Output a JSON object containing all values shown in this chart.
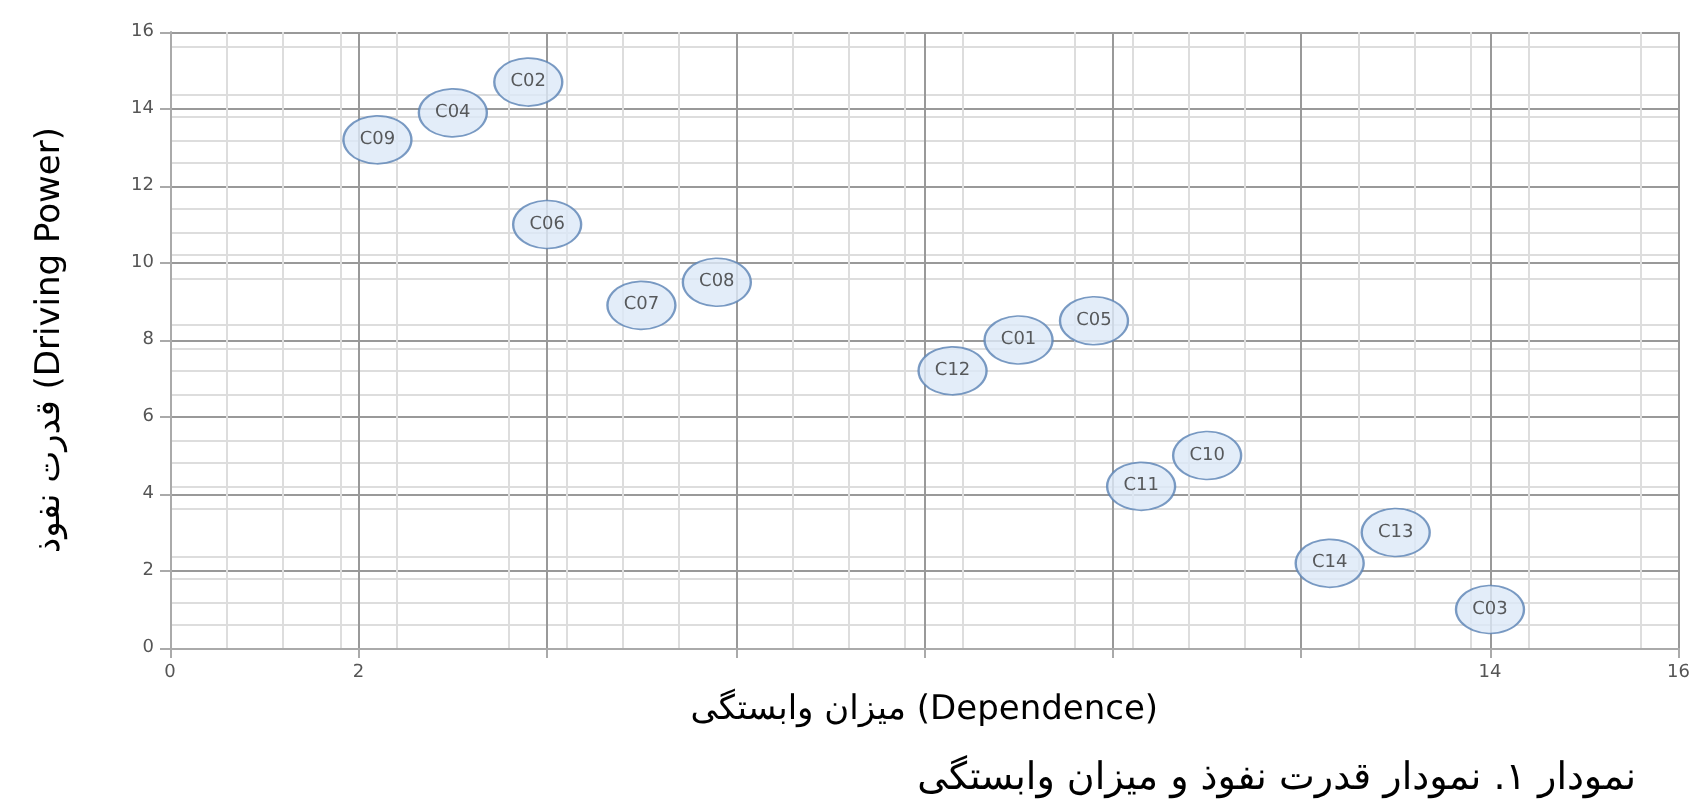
{
  "chart_data": {
    "type": "scatter",
    "xlabel": "میزان وابستگی (Dependence)",
    "ylabel": "قدرت نفوذ (Driving Power)",
    "annotations": [
      "نمودار ۱. نمودار قدرت نفوذ و میزان وابستگی"
    ],
    "x": [
      9.0,
      3.8,
      14.0,
      3.0,
      9.8,
      4.0,
      5.0,
      5.8,
      2.2,
      11.0,
      10.3,
      8.3,
      13.0,
      12.3
    ],
    "values": [
      8.0,
      14.7,
      1.0,
      13.9,
      8.5,
      11.0,
      8.9,
      9.5,
      13.2,
      5.0,
      4.2,
      7.2,
      3.0,
      2.2
    ],
    "value_labels": [
      "C01",
      "C02",
      "C03",
      "C04",
      "C05",
      "C06",
      "C07",
      "C08",
      "C09",
      "C10",
      "C11",
      "C12",
      "C13",
      "C14"
    ],
    "color": "#dce9f7",
    "marker": "circle",
    "grid": true,
    "xlim": [
      0,
      16
    ],
    "xticks": [
      0,
      2,
      {
        "value": 4,
        "label": null
      },
      {
        "value": 6,
        "label": null
      },
      {
        "value": 8,
        "label": null
      },
      {
        "value": 10,
        "label": null
      },
      {
        "value": 12,
        "label": null
      },
      14,
      16
    ],
    "ylim": [
      0,
      16
    ],
    "yticks": [
      0,
      2,
      4,
      6,
      8,
      10,
      12,
      14,
      16
    ]
  }
}
